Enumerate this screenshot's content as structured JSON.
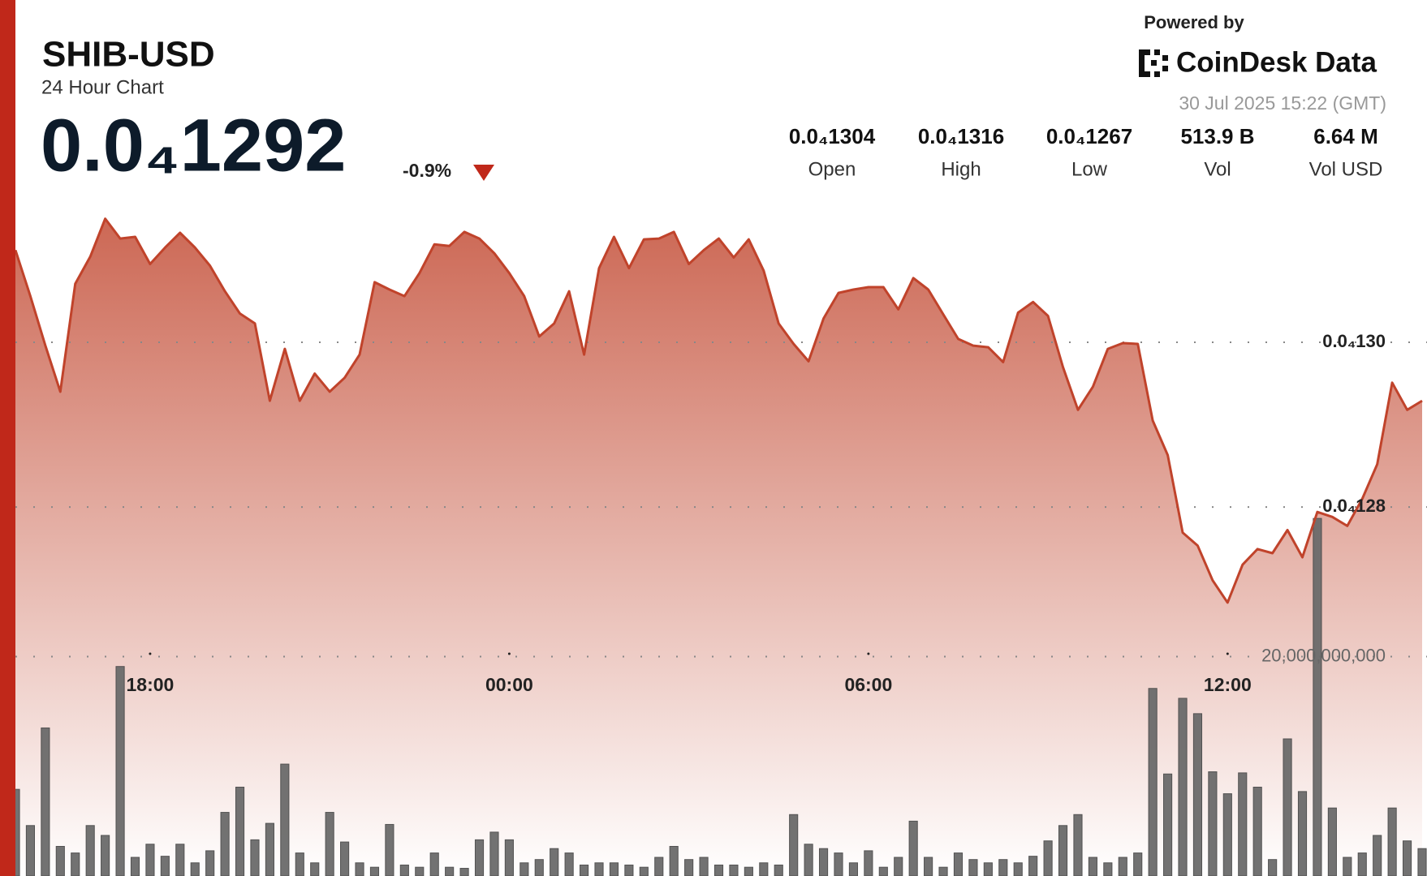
{
  "header": {
    "symbol": "SHIB-USD",
    "subtitle": "24 Hour Chart",
    "price": "0.0₄1292",
    "change": "-0.9%",
    "powered_by": "Powered by",
    "brand": "CoinDesk Data",
    "date": "30 Jul 2025 15:22 (GMT)"
  },
  "stats": [
    {
      "value": "0.0₄1304",
      "label": "Open"
    },
    {
      "value": "0.0₄1316",
      "label": "High"
    },
    {
      "value": "0.0₄1267",
      "label": "Low"
    },
    {
      "value": "513.9 B",
      "label": "Vol"
    },
    {
      "value": "6.64 M",
      "label": "Vol USD"
    }
  ],
  "chart_data": {
    "type": "area",
    "categories": [
      null,
      null,
      null,
      null,
      null,
      null,
      null,
      null,
      null,
      "18:00",
      null,
      null,
      null,
      null,
      null,
      null,
      null,
      null,
      null,
      null,
      null,
      null,
      null,
      null,
      null,
      null,
      null,
      null,
      null,
      null,
      null,
      null,
      null,
      "00:00",
      null,
      null,
      null,
      null,
      null,
      null,
      null,
      null,
      null,
      null,
      null,
      null,
      null,
      null,
      null,
      null,
      null,
      null,
      null,
      null,
      null,
      null,
      null,
      "06:00",
      null,
      null,
      null,
      null,
      null,
      null,
      null,
      null,
      null,
      null,
      null,
      null,
      null,
      null,
      null,
      null,
      null,
      null,
      null,
      null,
      null,
      null,
      null,
      "12:00",
      null,
      null,
      null,
      null,
      null,
      null,
      null,
      null,
      null,
      null,
      null,
      null,
      null
    ],
    "series": [
      {
        "color": "#c0432b",
        "values": [
          1.3112e-05,
          1.3056e-05,
          1.2996e-05,
          1.294e-05,
          1.3071e-05,
          1.3104e-05,
          1.315e-05,
          1.3126e-05,
          1.3128e-05,
          1.3095e-05,
          1.3115e-05,
          1.3133e-05,
          1.3115e-05,
          1.3093e-05,
          1.3062e-05,
          1.3035e-05,
          1.3023e-05,
          1.2929e-05,
          1.2992e-05,
          1.2929e-05,
          1.2962e-05,
          1.294e-05,
          1.2957e-05,
          1.2985e-05,
          1.3073e-05,
          1.3064e-05,
          1.3056e-05,
          1.3084e-05,
          1.3119e-05,
          1.3117e-05,
          1.3134e-05,
          1.3126e-05,
          1.3108e-05,
          1.3084e-05,
          1.3056e-05,
          1.3007e-05,
          1.3023e-05,
          1.3062e-05,
          1.2985e-05,
          1.309e-05,
          1.3128e-05,
          1.309e-05,
          1.3125e-05,
          1.3126e-05,
          1.3134e-05,
          1.3095e-05,
          1.3112e-05,
          1.3126e-05,
          1.3103e-05,
          1.3125e-05,
          1.3087e-05,
          1.3023e-05,
          1.2998e-05,
          1.2977e-05,
          1.3029e-05,
          1.306e-05,
          1.3064e-05,
          1.3067e-05,
          1.3067e-05,
          1.304e-05,
          1.3078e-05,
          1.3064e-05,
          1.3034e-05,
          1.3004e-05,
          1.2996e-05,
          1.2994e-05,
          1.2976e-05,
          1.3036e-05,
          1.3049e-05,
          1.3032e-05,
          1.297e-05,
          1.2918e-05,
          1.2946e-05,
          1.2992e-05,
          1.2999e-05,
          1.2998e-05,
          1.2905e-05,
          1.2863e-05,
          1.2769e-05,
          1.2753e-05,
          1.2711e-05,
          1.2684e-05,
          1.273e-05,
          1.2749e-05,
          1.2744e-05,
          1.2772e-05,
          1.2739e-05,
          1.2794e-05,
          1.2788e-05,
          1.2777e-05,
          1.281e-05,
          1.2852e-05,
          1.2951e-05,
          1.2918e-05,
          1.2929e-05
        ]
      },
      {
        "type": "bar",
        "axis": "y2",
        "color": "#6b6b6b",
        "values": [
          7900000000,
          4600000000,
          13500000000,
          2700000000,
          2100000000,
          4600000000,
          3700000000,
          19100000000,
          1700000000,
          2900000000,
          1800000000,
          2900000000,
          1200000000,
          2300000000,
          5800000000,
          8100000000,
          3300000000,
          4800000000,
          10200000000,
          2100000000,
          1200000000,
          5800000000,
          3100000000,
          1200000000,
          800000000,
          4700000000,
          1000000000,
          800000000,
          2100000000,
          800000000,
          700000000,
          3300000000,
          4000000000,
          3300000000,
          1200000000,
          1500000000,
          2500000000,
          2100000000,
          1000000000,
          1200000000,
          1200000000,
          1000000000,
          800000000,
          1700000000,
          2700000000,
          1500000000,
          1700000000,
          1000000000,
          1000000000,
          800000000,
          1200000000,
          1000000000,
          5600000000,
          2900000000,
          2500000000,
          2100000000,
          1200000000,
          2300000000,
          800000000,
          1700000000,
          5000000000,
          1700000000,
          800000000,
          2100000000,
          1500000000,
          1200000000,
          1500000000,
          1200000000,
          1800000000,
          3200000000,
          4600000000,
          5600000000,
          1700000000,
          1200000000,
          1700000000,
          2100000000,
          17100000000,
          9300000000,
          16200000000,
          14800000000,
          9500000000,
          7500000000,
          9400000000,
          8100000000,
          1500000000,
          12500000000,
          7700000000,
          32600000000,
          6200000000,
          1700000000,
          2100000000,
          3700000000,
          6200000000,
          3200000000,
          2500000000
        ]
      }
    ],
    "ylim": [
      1.2352e-05,
      1.3195e-05
    ],
    "yticks": [
      {
        "value": 1.3e-05,
        "label": "0.0₄130"
      },
      {
        "value": 1.28e-05,
        "label": "0.0₄128"
      }
    ],
    "y2lim": [
      0,
      63300000000
    ],
    "y2ticks": [
      {
        "value": 20000000000,
        "label": "20,000,000,000"
      }
    ],
    "grid": true
  }
}
